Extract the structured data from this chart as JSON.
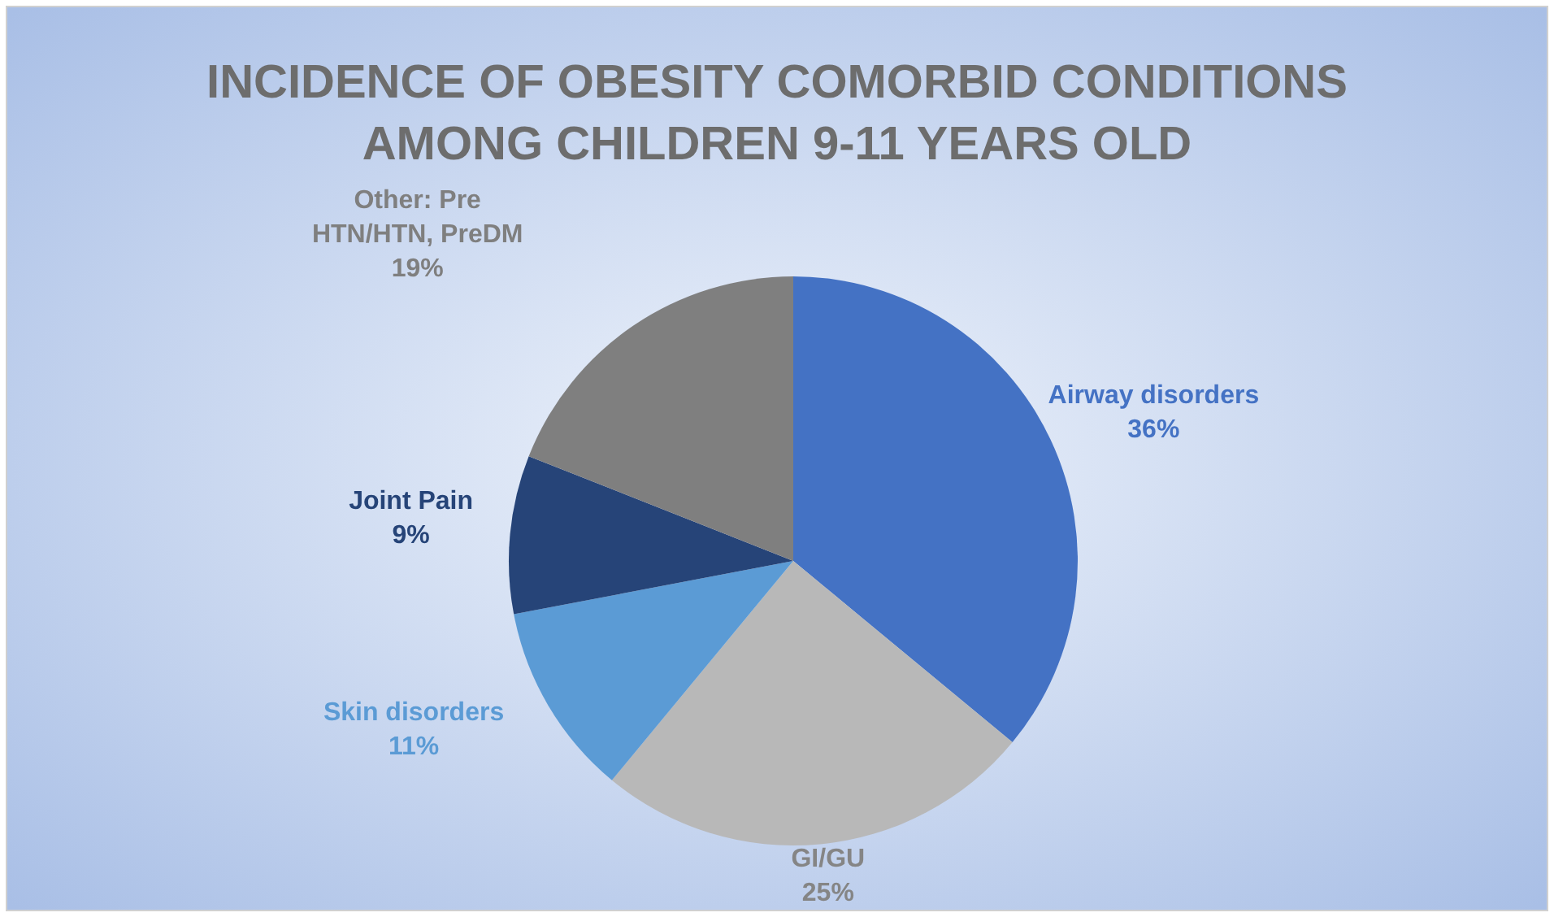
{
  "chart_data": {
    "type": "pie",
    "title": "INCIDENCE OF OBESITY COMORBID CONDITIONS AMONG CHILDREN 9-11 YEARS OLD",
    "categories": [
      "Airway disorders",
      "GI/GU",
      "Skin disorders",
      "Joint Pain",
      "Other: Pre HTN/HTN, PreDM"
    ],
    "values": [
      36,
      25,
      11,
      9,
      19
    ],
    "colors": [
      "#4472c4",
      "#b8b8b8",
      "#5b9bd5",
      "#264478",
      "#7f7f7f"
    ],
    "value_labels": [
      "36%",
      "25%",
      "11%",
      "9%",
      "19%"
    ]
  }
}
